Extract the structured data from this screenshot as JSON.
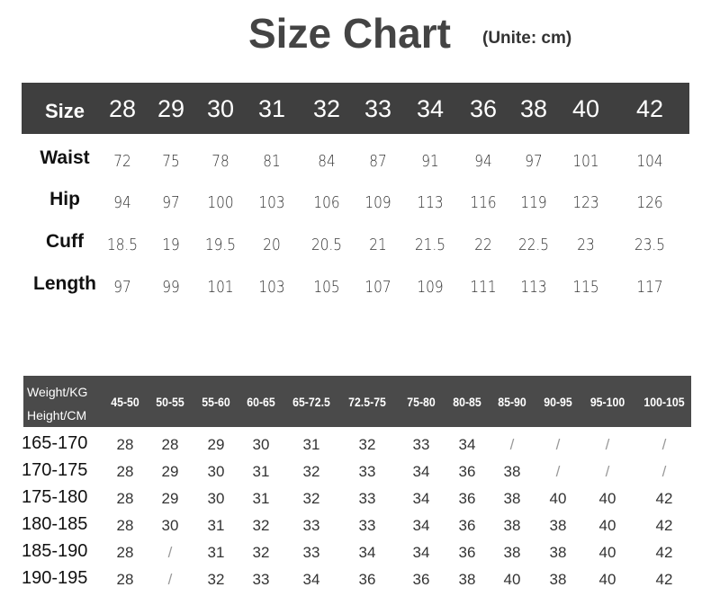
{
  "title": "Size Chart",
  "unit": "(Unite: cm)",
  "size_table": {
    "header_label": "Size",
    "sizes": [
      "28",
      "29",
      "30",
      "31",
      "32",
      "33",
      "34",
      "36",
      "38",
      "40",
      "42"
    ],
    "rows": [
      {
        "label": "Waist",
        "values": [
          "72",
          "75",
          "78",
          "81",
          "84",
          "87",
          "91",
          "94",
          "97",
          "101",
          "104"
        ]
      },
      {
        "label": "Hip",
        "values": [
          "94",
          "97",
          "100",
          "103",
          "106",
          "109",
          "113",
          "116",
          "119",
          "123",
          "126"
        ]
      },
      {
        "label": "Cuff",
        "values": [
          "18.5",
          "19",
          "19.5",
          "20",
          "20.5",
          "21",
          "21.5",
          "22",
          "22.5",
          "23",
          "23.5"
        ]
      },
      {
        "label": "Length",
        "values": [
          "97",
          "99",
          "101",
          "103",
          "105",
          "107",
          "109",
          "111",
          "113",
          "115",
          "117"
        ]
      }
    ]
  },
  "fit_table": {
    "weight_label": "Weight/KG",
    "height_label": "Height/CM",
    "weights": [
      "45-50",
      "50-55",
      "55-60",
      "60-65",
      "65-72.5",
      "72.5-75",
      "75-80",
      "80-85",
      "85-90",
      "90-95",
      "95-100",
      "100-105"
    ],
    "rows": [
      {
        "label": "165-170",
        "values": [
          "28",
          "28",
          "29",
          "30",
          "31",
          "32",
          "33",
          "34",
          "/",
          "/",
          "/",
          "/"
        ]
      },
      {
        "label": "170-175",
        "values": [
          "28",
          "29",
          "30",
          "31",
          "32",
          "33",
          "34",
          "36",
          "38",
          "/",
          "/",
          "/"
        ]
      },
      {
        "label": "175-180",
        "values": [
          "28",
          "29",
          "30",
          "31",
          "32",
          "33",
          "34",
          "36",
          "38",
          "40",
          "40",
          "42"
        ]
      },
      {
        "label": "180-185",
        "values": [
          "28",
          "30",
          "31",
          "32",
          "33",
          "33",
          "34",
          "36",
          "38",
          "38",
          "40",
          "42"
        ]
      },
      {
        "label": "185-190",
        "values": [
          "28",
          "/",
          "31",
          "32",
          "33",
          "34",
          "34",
          "36",
          "38",
          "38",
          "40",
          "42"
        ]
      },
      {
        "label": "190-195",
        "values": [
          "28",
          "/",
          "32",
          "33",
          "34",
          "36",
          "36",
          "38",
          "40",
          "38",
          "40",
          "42"
        ]
      }
    ]
  }
}
